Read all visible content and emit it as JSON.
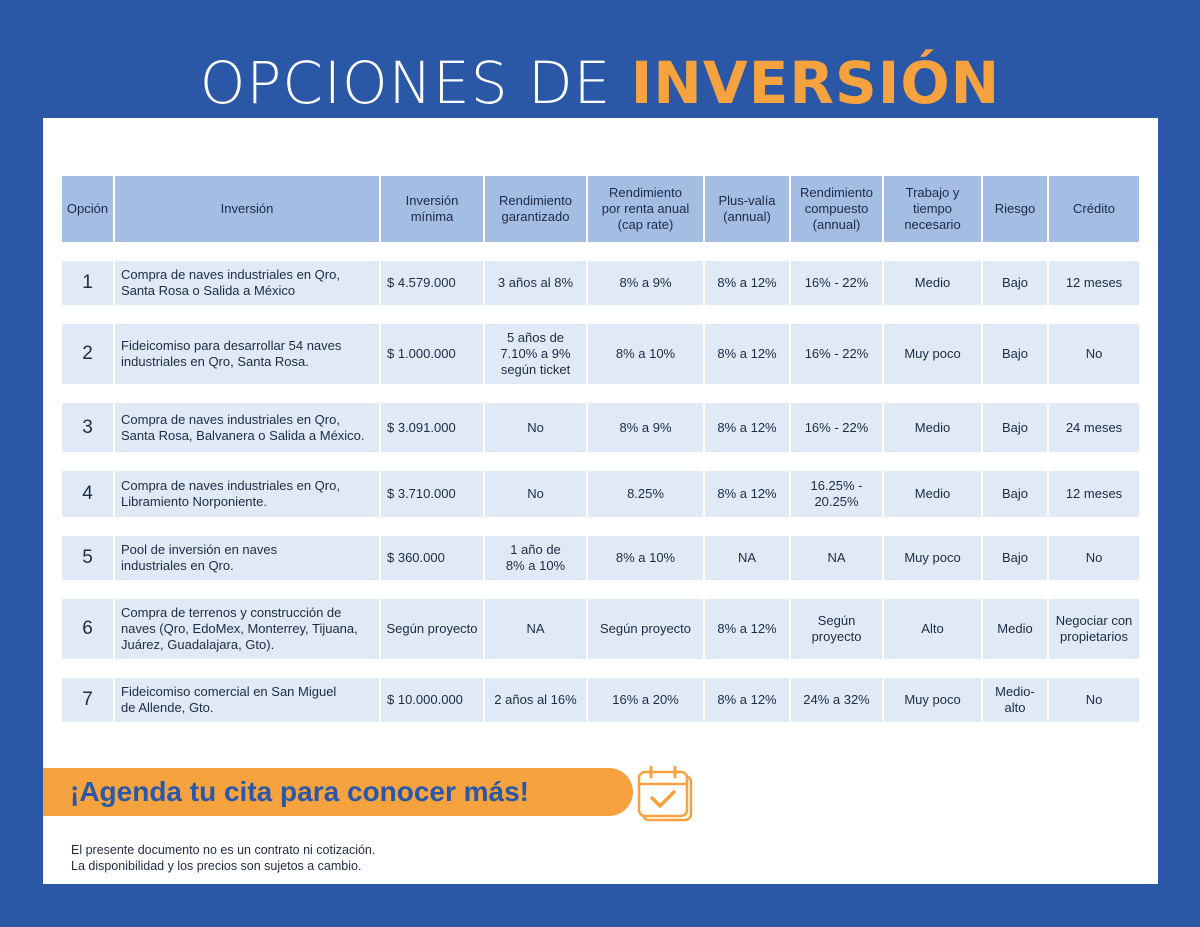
{
  "title": {
    "prefix": "OPCIONES DE",
    "highlight": "INVERSIÓN"
  },
  "table": {
    "headers": {
      "opcion": "Opción",
      "inversion": "Inversión",
      "minima_1": "Inversión",
      "minima_2": "mínima",
      "garantizado_1": "Rendimiento",
      "garantizado_2": "garantizado",
      "renta_1": "Rendimiento",
      "renta_2": "por renta anual",
      "renta_3": "(cap rate)",
      "plus_1": "Plus-valía",
      "plus_2": "(annual)",
      "compuesto_1": "Rendimiento",
      "compuesto_2": "compuesto",
      "compuesto_3": "(annual)",
      "trabajo_1": "Trabajo y",
      "trabajo_2": "tiempo",
      "trabajo_3": "necesario",
      "riesgo": "Riesgo",
      "credito": "Crédito"
    },
    "rows": [
      {
        "num": "1",
        "inv_1": "Compra de naves industriales en Qro,",
        "inv_2": "Santa Rosa o Salida a México",
        "inv_3": "",
        "minima": "$     4.579.000",
        "gar_1": "3 años al 8%",
        "gar_2": "",
        "gar_3": "",
        "renta": "8% a 9%",
        "plus": "8% a 12%",
        "comp_1": "16% - 22%",
        "comp_2": "",
        "trabajo": "Medio",
        "riesgo_1": "Bajo",
        "riesgo_2": "",
        "cred_1": "12 meses",
        "cred_2": ""
      },
      {
        "num": "2",
        "inv_1": "Fideicomiso para desarrollar 54 naves",
        "inv_2": "industriales en Qro, Santa Rosa.",
        "inv_3": "",
        "minima": "$     1.000.000",
        "gar_1": "5 años de",
        "gar_2": "7.10% a 9%",
        "gar_3": "según ticket",
        "renta": "8% a 10%",
        "plus": "8% a 12%",
        "comp_1": "16% - 22%",
        "comp_2": "",
        "trabajo": "Muy poco",
        "riesgo_1": "Bajo",
        "riesgo_2": "",
        "cred_1": "No",
        "cred_2": ""
      },
      {
        "num": "3",
        "inv_1": "Compra de naves industriales en Qro,",
        "inv_2": "Santa Rosa, Balvanera o Salida a México.",
        "inv_3": "",
        "minima": "$     3.091.000",
        "gar_1": "No",
        "gar_2": "",
        "gar_3": "",
        "renta": "8% a 9%",
        "plus": "8% a 12%",
        "comp_1": "16% - 22%",
        "comp_2": "",
        "trabajo": "Medio",
        "riesgo_1": "Bajo",
        "riesgo_2": "",
        "cred_1": "24 meses",
        "cred_2": ""
      },
      {
        "num": "4",
        "inv_1": "Compra de naves industriales en Qro,",
        "inv_2": "Libramiento Norponiente.",
        "inv_3": "",
        "minima": "$     3.710.000",
        "gar_1": "No",
        "gar_2": "",
        "gar_3": "",
        "renta": "8.25%",
        "plus": "8% a 12%",
        "comp_1": "16.25% -",
        "comp_2": "20.25%",
        "trabajo": "Medio",
        "riesgo_1": "Bajo",
        "riesgo_2": "",
        "cred_1": "12 meses",
        "cred_2": ""
      },
      {
        "num": "5",
        "inv_1": "Pool de inversión en naves",
        "inv_2": "industriales en Qro.",
        "inv_3": "",
        "minima": "$      360.000",
        "gar_1": "1 año de",
        "gar_2": "8% a 10%",
        "gar_3": "",
        "renta": "8% a 10%",
        "plus": "NA",
        "comp_1": "NA",
        "comp_2": "",
        "trabajo": "Muy poco",
        "riesgo_1": "Bajo",
        "riesgo_2": "",
        "cred_1": "No",
        "cred_2": ""
      },
      {
        "num": "6",
        "inv_1": "Compra de terrenos y construcción de",
        "inv_2": "naves (Qro, EdoMex, Monterrey, Tijuana,",
        "inv_3": "Juárez, Guadalajara, Gto).",
        "minima": "Según proyecto",
        "gar_1": "NA",
        "gar_2": "",
        "gar_3": "",
        "renta": "Según proyecto",
        "plus": "8% a 12%",
        "comp_1": "Según",
        "comp_2": "proyecto",
        "trabajo": "Alto",
        "riesgo_1": "Medio",
        "riesgo_2": "",
        "cred_1": "Negociar con",
        "cred_2": "propietarios"
      },
      {
        "num": "7",
        "inv_1": "Fideicomiso comercial en San Miguel",
        "inv_2": "de Allende, Gto.",
        "inv_3": "",
        "minima": "$  10.000.000",
        "gar_1": "2 años al 16%",
        "gar_2": "",
        "gar_3": "",
        "renta": "16% a 20%",
        "plus": "8% a 12%",
        "comp_1": "24% a 32%",
        "comp_2": "",
        "trabajo": "Muy poco",
        "riesgo_1": "Medio-",
        "riesgo_2": "alto",
        "cred_1": "No",
        "cred_2": ""
      }
    ]
  },
  "cta": {
    "label": "¡Agenda tu cita para conocer más!"
  },
  "disclaimer": {
    "line1": "El presente documento no es un contrato ni cotización.",
    "line2": "La disponibilidad y los precios son sujetos a cambio."
  },
  "colors": {
    "background": "#2b58a6",
    "accent": "#f6a23f",
    "header": "#a4bde3",
    "row": "#dfeaf6"
  }
}
